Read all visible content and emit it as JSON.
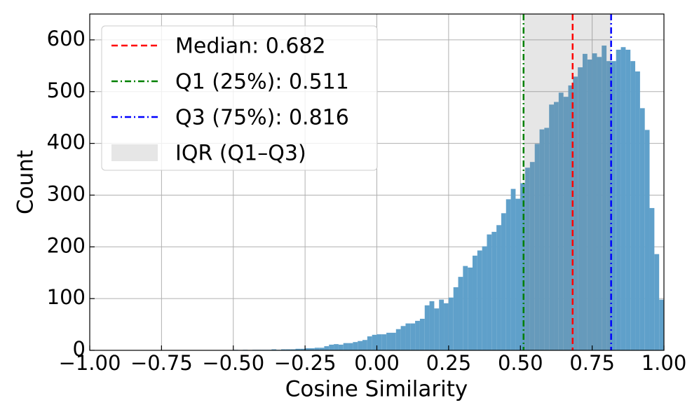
{
  "chart_data": {
    "type": "histogram",
    "xlabel": "Cosine Similarity",
    "ylabel": "Count",
    "color": "#5fa0ca",
    "grid": true,
    "legend": "upper left",
    "xlim": [
      -1,
      1
    ],
    "ylim": [
      0,
      650
    ],
    "xticks": [
      {
        "value": -1,
        "label": "−1.00"
      },
      {
        "value": -0.75,
        "label": "−0.75"
      },
      {
        "value": -0.5,
        "label": "−0.50"
      },
      {
        "value": -0.25,
        "label": "−0.25"
      },
      {
        "value": 0,
        "label": "0.00"
      },
      0.25,
      {
        "value": 0.5,
        "label": "0.50"
      },
      0.75,
      {
        "value": 1,
        "label": "1.00"
      }
    ],
    "yticks": [
      0,
      100,
      200,
      300,
      400,
      500,
      600
    ],
    "bins": [
      -1,
      -0.9833,
      -0.9667,
      -0.95,
      -0.9333,
      -0.9167,
      -0.9,
      -0.8833,
      -0.8667,
      -0.85,
      -0.8333,
      -0.8167,
      -0.8,
      -0.7833,
      -0.7667,
      -0.75,
      -0.7333,
      -0.7167,
      -0.7,
      -0.6833,
      -0.6667,
      -0.65,
      -0.6333,
      -0.6167,
      -0.6,
      -0.5833,
      -0.5667,
      -0.55,
      -0.5333,
      -0.5167,
      -0.5,
      -0.4833,
      -0.4667,
      -0.45,
      -0.4333,
      -0.4167,
      -0.4,
      -0.3833,
      -0.3667,
      -0.35,
      -0.3333,
      -0.3167,
      -0.3,
      -0.2833,
      -0.2667,
      -0.25,
      -0.2333,
      -0.2167,
      -0.2,
      -0.1833,
      -0.1667,
      -0.15,
      -0.1333,
      -0.1167,
      -0.1,
      -0.0833,
      -0.0667,
      -0.05,
      -0.0333,
      -0.0167,
      0,
      0.0167,
      0.0333,
      0.05,
      0.0667,
      0.0833,
      0.1,
      0.1167,
      0.1333,
      0.15,
      0.1667,
      0.1833,
      0.2,
      0.2167,
      0.2333,
      0.25,
      0.2667,
      0.2833,
      0.3,
      0.3167,
      0.3333,
      0.35,
      0.3667,
      0.3833,
      0.4,
      0.4167,
      0.4333,
      0.45,
      0.4667,
      0.4833,
      0.5,
      0.5167,
      0.5333,
      0.55,
      0.5667,
      0.5833,
      0.6,
      0.6167,
      0.6333,
      0.65,
      0.6667,
      0.6833,
      0.7,
      0.7167,
      0.7333,
      0.75,
      0.7667,
      0.7833,
      0.8,
      0.8167,
      0.8333,
      0.85,
      0.8667,
      0.8833,
      0.9,
      0.9167,
      0.9333,
      0.95,
      0.9667,
      0.9833,
      1
    ],
    "values": [
      0,
      0,
      0,
      0,
      0,
      0,
      0,
      0,
      0,
      0,
      0,
      0,
      0,
      0,
      0,
      0,
      0,
      0,
      0,
      0,
      0,
      0,
      0,
      0,
      0,
      0,
      0,
      0,
      0,
      0,
      1,
      0,
      1,
      0,
      1,
      1,
      1,
      1,
      2,
      1,
      2,
      2,
      2,
      3,
      3,
      4,
      4,
      5,
      5,
      8,
      11,
      12,
      11,
      14,
      14,
      16,
      18,
      20,
      27,
      30,
      31,
      31,
      34,
      34,
      41,
      47,
      52,
      52,
      57,
      61,
      87,
      95,
      81,
      98,
      91,
      102,
      122,
      142,
      163,
      160,
      183,
      193,
      201,
      224,
      229,
      242,
      265,
      292,
      312,
      293,
      323,
      353,
      364,
      399,
      427,
      430,
      475,
      480,
      498,
      490,
      512,
      529,
      547,
      573,
      562,
      574,
      567,
      589,
      559,
      559,
      581,
      586,
      581,
      559,
      539,
      468,
      426,
      275,
      186,
      98
    ],
    "reference_lines": [
      {
        "name": "Median: 0.682",
        "value": 0.682,
        "color": "#ff0000",
        "linestyle": "dashed"
      },
      {
        "name": "Q1 (25%): 0.511",
        "value": 0.511,
        "color": "#008000",
        "linestyle": "dashdot"
      },
      {
        "name": "Q3 (75%): 0.816",
        "value": 0.816,
        "color": "#0000ff",
        "linestyle": "dashdot"
      }
    ],
    "span": {
      "name": "IQR (Q1–Q3)",
      "range": [
        0.511,
        0.816
      ],
      "color": "#808080"
    }
  }
}
